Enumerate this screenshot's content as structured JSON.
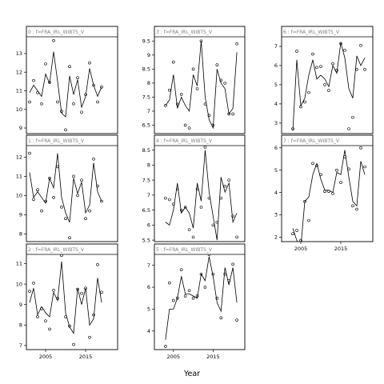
{
  "chart_data": {
    "type": "line",
    "xlabel": "Year",
    "x": [
      2001,
      2002,
      2003,
      2004,
      2005,
      2006,
      2007,
      2008,
      2009,
      2010,
      2011,
      2012,
      2013,
      2014,
      2015,
      2016,
      2017,
      2018,
      2019,
      2020,
      2021,
      2022
    ],
    "x_ticks": [
      2005,
      2015
    ],
    "panels": [
      {
        "title": "0 : f=FRA_IRL_WIBTS_V",
        "ylim": [
          8.7,
          13.9
        ],
        "yticks": [
          9,
          10,
          11,
          12,
          13
        ],
        "observed": [
          10.4,
          11.55,
          10.9,
          10.3,
          12.45,
          11.45,
          13.7,
          10.4,
          9.9,
          8.9,
          12.3,
          10.3,
          11.7,
          9.85,
          10.8,
          12.5,
          11.3,
          10.4,
          11.2,
          null,
          null,
          null
        ],
        "fitted": [
          10.9,
          11.3,
          11.0,
          10.7,
          11.9,
          11.4,
          13.1,
          11.5,
          9.8,
          9.6,
          11.8,
          10.8,
          11.6,
          10.1,
          10.7,
          12.2,
          11.3,
          10.7,
          11.2,
          null,
          null,
          null
        ]
      },
      {
        "title": "1 : f=FRA_IRL_WIBTS_V",
        "ylim": [
          7.6,
          12.6
        ],
        "yticks": [
          8,
          9,
          10,
          11,
          12
        ],
        "observed": [
          12.2,
          9.8,
          10.3,
          9.2,
          9.7,
          10.9,
          9.9,
          11.5,
          9.4,
          8.8,
          7.8,
          11.0,
          10.0,
          10.8,
          8.8,
          9.2,
          11.9,
          10.5,
          9.7,
          null,
          null,
          null
        ],
        "fitted": [
          11.2,
          9.9,
          10.2,
          9.9,
          9.6,
          10.9,
          10.4,
          12.2,
          9.9,
          9.1,
          8.6,
          10.9,
          10.1,
          10.7,
          9.1,
          9.5,
          11.7,
          10.2,
          9.7,
          null,
          null,
          null
        ]
      },
      {
        "title": "2 : f=FRA_IRL_WIBTS_V",
        "ylim": [
          6.8,
          11.45
        ],
        "yticks": [
          7,
          8,
          9,
          10,
          11
        ],
        "observed": [
          9.65,
          10.05,
          8.4,
          8.8,
          8.2,
          7.8,
          9.7,
          9.3,
          11.4,
          8.4,
          7.95,
          7.05,
          9.75,
          9.55,
          9.8,
          7.4,
          8.5,
          10.95,
          9.6,
          null,
          null,
          null
        ],
        "fitted": [
          9.1,
          9.8,
          8.5,
          8.9,
          8.6,
          8.4,
          9.6,
          9.2,
          11.1,
          8.6,
          7.9,
          7.6,
          9.8,
          9.0,
          9.8,
          8.0,
          8.3,
          10.3,
          9.1,
          null,
          null,
          null
        ]
      },
      {
        "title": "3 : f=FRA_IRL_WIBTS_V",
        "ylim": [
          6.2,
          9.65
        ],
        "yticks": [
          6.5,
          7.0,
          7.5,
          8.0,
          8.5,
          9.0,
          9.5
        ],
        "observed": [
          null,
          null,
          7.2,
          7.75,
          8.75,
          7.25,
          7.6,
          6.5,
          6.4,
          8.5,
          7.8,
          9.5,
          7.25,
          6.85,
          6.5,
          8.65,
          8.1,
          8.0,
          6.9,
          6.9,
          9.4,
          null
        ],
        "fitted": [
          null,
          null,
          7.2,
          7.4,
          8.3,
          7.1,
          7.5,
          7.2,
          7.0,
          8.3,
          7.9,
          9.5,
          7.5,
          6.7,
          6.4,
          8.5,
          8.0,
          7.8,
          6.9,
          7.1,
          9.1,
          null
        ]
      },
      {
        "title": "4 : f=FRA_IRL_WIBTS_V",
        "ylim": [
          5.45,
          8.65
        ],
        "yticks": [
          5.5,
          6.0,
          6.5,
          7.0,
          7.5,
          8.0,
          8.5
        ],
        "observed": [
          null,
          null,
          6.9,
          6.85,
          6.7,
          7.2,
          6.5,
          6.6,
          5.85,
          5.6,
          7.2,
          6.6,
          8.6,
          6.9,
          6.0,
          6.1,
          6.9,
          7.3,
          7.5,
          6.3,
          5.6,
          null
        ],
        "fitted": [
          null,
          null,
          6.1,
          6.0,
          6.5,
          7.4,
          6.4,
          6.6,
          6.4,
          5.9,
          7.4,
          6.8,
          8.5,
          7.1,
          6.3,
          5.5,
          7.6,
          7.1,
          7.4,
          6.1,
          6.4,
          null
        ]
      },
      {
        "title": "5 : f=FRA_IRL_WIBTS_V",
        "ylim": [
          3.15,
          7.5
        ],
        "yticks": [
          4,
          5,
          6,
          7
        ],
        "observed": [
          null,
          null,
          3.3,
          6.2,
          5.4,
          5.5,
          6.8,
          5.6,
          5.85,
          5.5,
          5.6,
          6.6,
          6.0,
          7.5,
          6.6,
          5.5,
          4.6,
          6.6,
          6.3,
          7.05,
          4.5,
          null
        ],
        "fitted": [
          null,
          null,
          3.6,
          5.0,
          5.0,
          5.5,
          6.5,
          5.7,
          5.7,
          5.6,
          5.5,
          6.6,
          6.3,
          7.4,
          6.5,
          5.3,
          4.9,
          6.9,
          6.1,
          6.9,
          5.3,
          null
        ]
      },
      {
        "title": "6 : f=FRA_IRL_WIBTS_V",
        "ylim": [
          2.45,
          7.5
        ],
        "yticks": [
          3,
          4,
          5,
          6,
          7
        ],
        "observed": [
          null,
          null,
          2.7,
          6.75,
          3.85,
          4.1,
          4.6,
          6.6,
          5.9,
          5.95,
          5.0,
          4.7,
          6.1,
          5.75,
          7.15,
          6.8,
          2.7,
          3.3,
          5.8,
          7.05,
          5.8,
          null
        ],
        "fitted": [
          null,
          null,
          2.6,
          6.3,
          3.9,
          4.3,
          5.5,
          6.3,
          5.3,
          5.5,
          5.3,
          4.9,
          6.0,
          5.6,
          7.2,
          6.4,
          4.8,
          4.3,
          6.5,
          6.0,
          6.4,
          null
        ]
      },
      {
        "title": "7 : f=FRA_IRL_WIBTS_V",
        "ylim": [
          1.8,
          6.1
        ],
        "yticks": [
          2,
          3,
          4,
          5,
          6
        ],
        "observed": [
          null,
          null,
          2.15,
          2.3,
          1.85,
          3.6,
          2.75,
          5.3,
          5.2,
          4.8,
          4.05,
          4.05,
          3.95,
          5.0,
          4.45,
          5.6,
          5.05,
          3.4,
          3.25,
          6.0,
          5.15,
          null
        ],
        "fitted": [
          null,
          null,
          2.4,
          1.85,
          1.55,
          3.6,
          3.8,
          4.8,
          5.3,
          4.6,
          4.1,
          4.1,
          4.0,
          4.9,
          4.8,
          5.9,
          4.7,
          3.6,
          3.4,
          5.4,
          4.8,
          null
        ]
      }
    ]
  }
}
